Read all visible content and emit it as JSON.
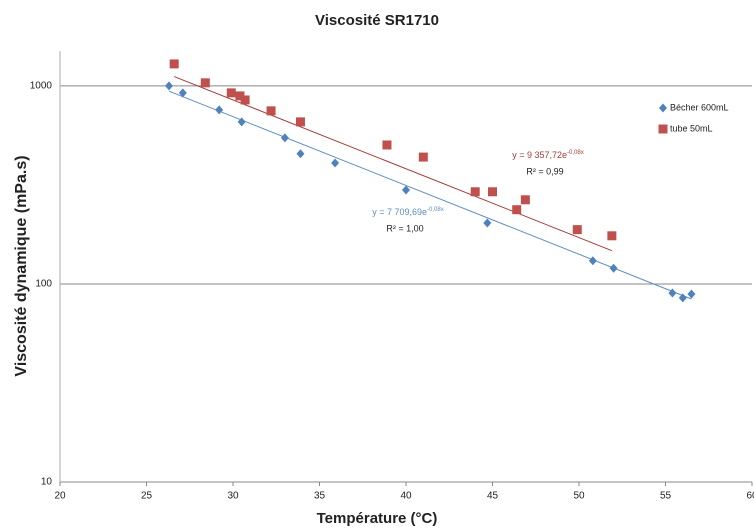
{
  "chart_data": {
    "type": "scatter",
    "title": "Viscosité SR1710",
    "x_label": "Température (°C)",
    "y_label": "Viscosité dynamique (mPa.s)",
    "xlim": [
      20,
      60
    ],
    "xticks": [
      20,
      25,
      30,
      35,
      40,
      45,
      50,
      55,
      60
    ],
    "ylim": [
      10,
      1500
    ],
    "yticks": [
      10,
      100,
      1000
    ],
    "log_y": true,
    "grid": true,
    "legend": "right",
    "series": [
      {
        "name": "Bécher 600mL",
        "color": "#4f81bd",
        "marker": "diamond",
        "x": [
          26.3,
          27.1,
          29.2,
          30.5,
          33.0,
          33.9,
          35.9,
          40.0,
          44.7,
          50.8,
          52.0,
          55.4,
          56.0,
          56.5
        ],
        "values": [
          1000,
          922,
          757,
          658,
          546,
          454,
          408,
          298,
          203,
          131,
          120,
          90,
          85,
          89
        ],
        "trendline": {
          "a": 7709.69,
          "b": -0.08,
          "equation": "y = 7 709,69e",
          "exponent": "-0,08x",
          "r2": "R² = 1,00",
          "color": "#5b8fbf"
        }
      },
      {
        "name": "tube 50mL",
        "color": "#c0504d",
        "marker": "square",
        "x": [
          26.6,
          28.4,
          29.9,
          30.4,
          30.7,
          32.2,
          33.9,
          38.9,
          41.0,
          44.0,
          45.0,
          46.4,
          46.9,
          49.9,
          51.9
        ],
        "values": [
          1291,
          1036,
          922,
          890,
          849,
          748,
          658,
          503,
          437,
          292,
          292,
          237,
          266,
          188,
          175
        ],
        "trendline": {
          "a": 9357.72,
          "b": -0.08,
          "equation": "y = 9 357,72e",
          "exponent": "-0,08x",
          "r2": "R² = 0,99",
          "color": "#a33c3a"
        }
      }
    ]
  }
}
